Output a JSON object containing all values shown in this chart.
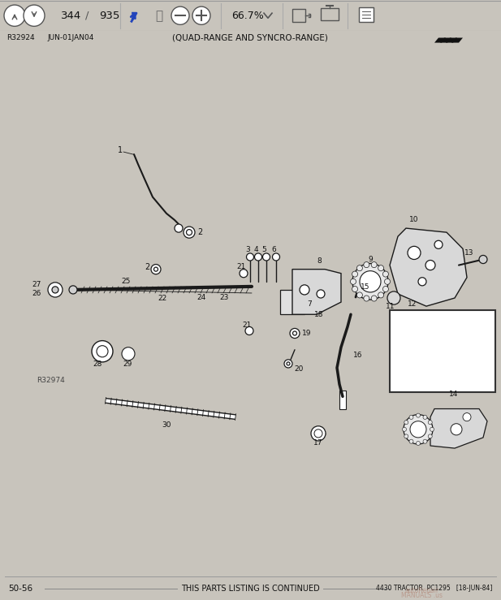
{
  "title": "(QUAD-RANGE AND SYNCRO-RANGE)",
  "page_num": "344",
  "page_total": "935",
  "zoom_pct": "66.7%",
  "ref_left": "R32924",
  "ref_mid": "JUN-01JAN04",
  "footer_left": "50-56",
  "footer_center": "THIS PARTS LISTING IS CONTINUED",
  "footer_right": "4430 TRACTOR  PC1295   [18-JUN-84]",
  "figure_ref": "R32974",
  "bg_toolbar": "#e8e6e3",
  "bg_content": "#ffffff",
  "bg_page": "#c8c4bc",
  "lc": "#1a1a1a",
  "tc": "#111111",
  "watermark": "#b08070"
}
